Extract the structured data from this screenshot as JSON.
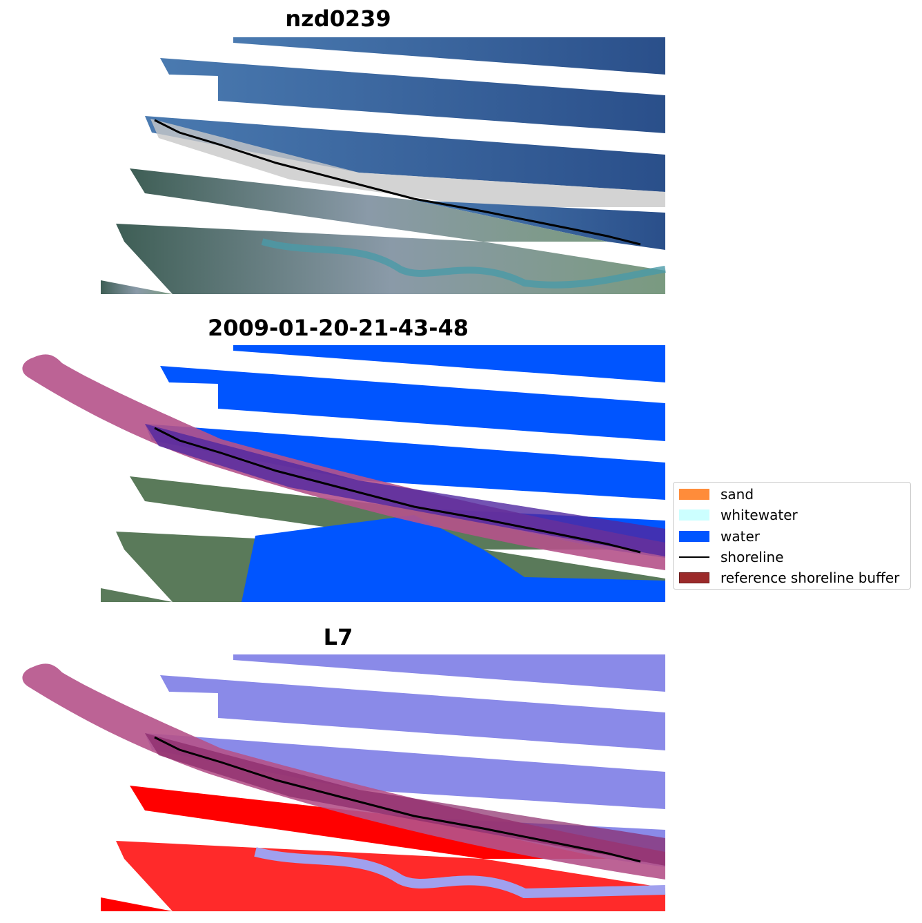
{
  "panels": [
    {
      "title": "nzd0239"
    },
    {
      "title": "2009-01-20-21-43-48"
    },
    {
      "title": "L7"
    }
  ],
  "legend": {
    "items": [
      {
        "label": "sand",
        "color": "#ff8c3a"
      },
      {
        "label": "whitewater",
        "color": "#ccffff"
      },
      {
        "label": "water",
        "color": "#0055ff"
      },
      {
        "label": "shoreline",
        "color": "#000000"
      },
      {
        "label": "reference shoreline buffer",
        "color": "#9b2a2a"
      }
    ]
  },
  "colors": {
    "sea_rgb": "#2c5590",
    "land_rgb": "#5a7a5a",
    "water_class": "#0055ff",
    "buffer_overlay": "#b5528a",
    "index_positive": "#ff0000",
    "index_negative": "#8a8ae8"
  }
}
